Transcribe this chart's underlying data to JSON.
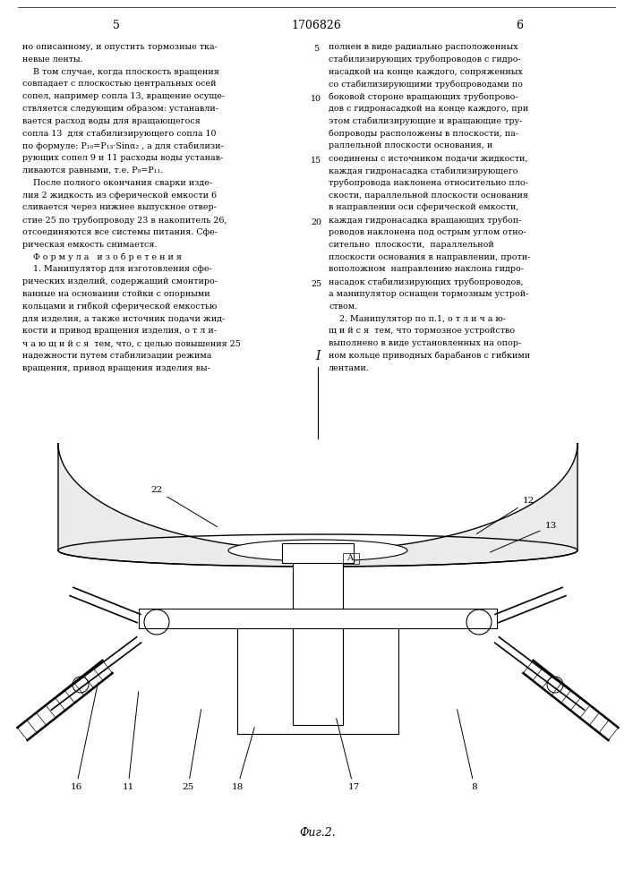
{
  "page_number_left": "5",
  "page_number_right": "6",
  "patent_number": "1706826",
  "background_color": "#ffffff",
  "text_color": "#000000",
  "fig_label": "Фиг.2.",
  "left_col": [
    "но описанному, и опустить тормозные тка-",
    "невые ленты.",
    "    В том случае, когда плоскость вращения",
    "совпадает с плоскостью центральных осей",
    "сопел, например сопла 13, вращение осуще-",
    "ствляется следующим образом: устанавли-",
    "вается расход воды для вращающегося",
    "сопла 13  для стабилизирующего сопла 10",
    "по формуле: P₁₀=P₁₃·Sinα₂ , а для стабилизи-",
    "рующих сопел 9 и 11 расходы воды устанав-",
    "ливаются равными, т.е. P₉=P₁₁.",
    "    После полного окончания сварки изде-",
    "лия 2 жидкость из сферической емкости 6",
    "сливается через нижнее выпускное отвер-",
    "стие 25 по трубопроводу 23 в накопитель 26,",
    "отсоединяются все системы питания. Сфе-",
    "рическая емкость снимается.",
    "    Ф о р м у л а   и з о б р е т е н и я",
    "    1. Манипулятор для изготовления сфе-",
    "рических изделий, содержащий смонтиро-",
    "ванные на основании стойки с опорными",
    "кольцами и гибкой сферической емкостью",
    "для изделия, а также источник подачи жид-",
    "кости и привод вращения изделия, о т л и-",
    "ч а ю щ и й с я  тем, что, с целью повышения 25",
    "надежности путем стабилизации режима",
    "вращения, привод вращения изделия вы-"
  ],
  "right_col": [
    "полнен в виде радиально расположенных",
    "стабилизирующих трубопроводов с гидро-",
    "насадкой на конце каждого, сопряженных",
    "со стабилизирующими трубопроводами по",
    "боковой стороне вращающих трубопрово-",
    "дов с гидронасадкой на конце каждого, при",
    "этом стабилизирующие и вращающие тру-",
    "бопроводы расположены в плоскости, па-",
    "раллельной плоскости основания, и",
    "соединены с источником подачи жидкости,",
    "каждая гидронасадка стабилизирующего",
    "трубопровода наклонена относительно пло-",
    "скости, параллельной плоскости основания",
    "в направлении оси сферической емкости,",
    "каждая гидронасадка вращающих трубоп-",
    "роводов наклонена под острым углом отно-",
    "сительно  плоскости,  параллельной",
    "плоскости основания в направлении, проти-",
    "воположном  направлению наклона гидро-",
    "насадок стабилизирующих трубопроводов,",
    "а манипулятор оснащен тормозным устрой-",
    "ством.",
    "    2. Манипулятор по п.1, о т л и ч а ю-",
    "щ и й с я  тем, что тормозное устройство",
    "выполнено в виде установленных на опор-",
    "ном кольце приводных барабанов с гибкими",
    "лентами."
  ],
  "line_numbers": {
    "0": "5",
    "4": "10",
    "9": "15",
    "14": "20",
    "19": "25"
  }
}
